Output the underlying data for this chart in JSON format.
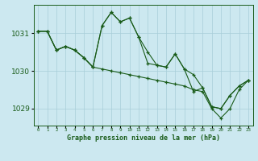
{
  "title": "Graphe pression niveau de la mer (hPa)",
  "background_color": "#cce8f0",
  "plot_bg_color": "#cce8f0",
  "line_color": "#1a5c1a",
  "grid_color": "#a8cdd8",
  "xlim": [
    -0.5,
    23.5
  ],
  "ylim": [
    1028.55,
    1031.75
  ],
  "yticks": [
    1029,
    1030,
    1031
  ],
  "xtick_labels": [
    "0",
    "1",
    "2",
    "3",
    "4",
    "5",
    "6",
    "7",
    "8",
    "9",
    "10",
    "11",
    "12",
    "13",
    "14",
    "15",
    "16",
    "17",
    "18",
    "19",
    "20",
    "21",
    "22",
    "23"
  ],
  "series1_x": [
    0,
    1,
    2,
    3,
    4,
    5,
    6,
    7,
    8,
    9,
    10,
    11,
    12,
    13,
    14,
    15,
    16,
    17,
    18,
    19,
    20,
    21,
    22,
    23
  ],
  "series1_y": [
    1031.05,
    1031.05,
    1030.55,
    1030.65,
    1030.55,
    1030.35,
    1030.1,
    1031.2,
    1031.55,
    1031.3,
    1031.4,
    1030.9,
    1030.5,
    1030.15,
    1030.1,
    1030.45,
    1030.05,
    1029.9,
    1029.55,
    1029.05,
    1029.0,
    1029.35,
    1029.6,
    1029.75
  ],
  "series2_x": [
    0,
    1,
    2,
    3,
    4,
    5,
    6,
    7,
    8,
    9,
    10,
    11,
    12,
    13,
    14,
    15,
    16,
    17,
    18,
    19,
    20,
    21,
    22,
    23
  ],
  "series2_y": [
    1031.05,
    1031.05,
    1030.55,
    1030.65,
    1030.55,
    1030.35,
    1030.1,
    1030.05,
    1030.0,
    1029.95,
    1029.9,
    1029.85,
    1029.8,
    1029.75,
    1029.7,
    1029.65,
    1029.6,
    1029.5,
    1029.45,
    1029.0,
    1028.75,
    1029.0,
    1029.5,
    1029.75
  ],
  "series3_x": [
    0,
    1,
    2,
    3,
    4,
    5,
    6,
    7,
    8,
    9,
    10,
    11,
    12,
    13,
    14,
    15,
    16,
    17,
    18,
    19,
    20,
    21,
    22,
    23
  ],
  "series3_y": [
    1031.05,
    1031.05,
    1030.55,
    1030.65,
    1030.55,
    1030.35,
    1030.1,
    1031.2,
    1031.55,
    1031.3,
    1031.4,
    1030.9,
    1030.2,
    1030.15,
    1030.1,
    1030.45,
    1030.05,
    1029.45,
    1029.55,
    1029.05,
    1029.0,
    1029.35,
    1029.6,
    1029.75
  ]
}
